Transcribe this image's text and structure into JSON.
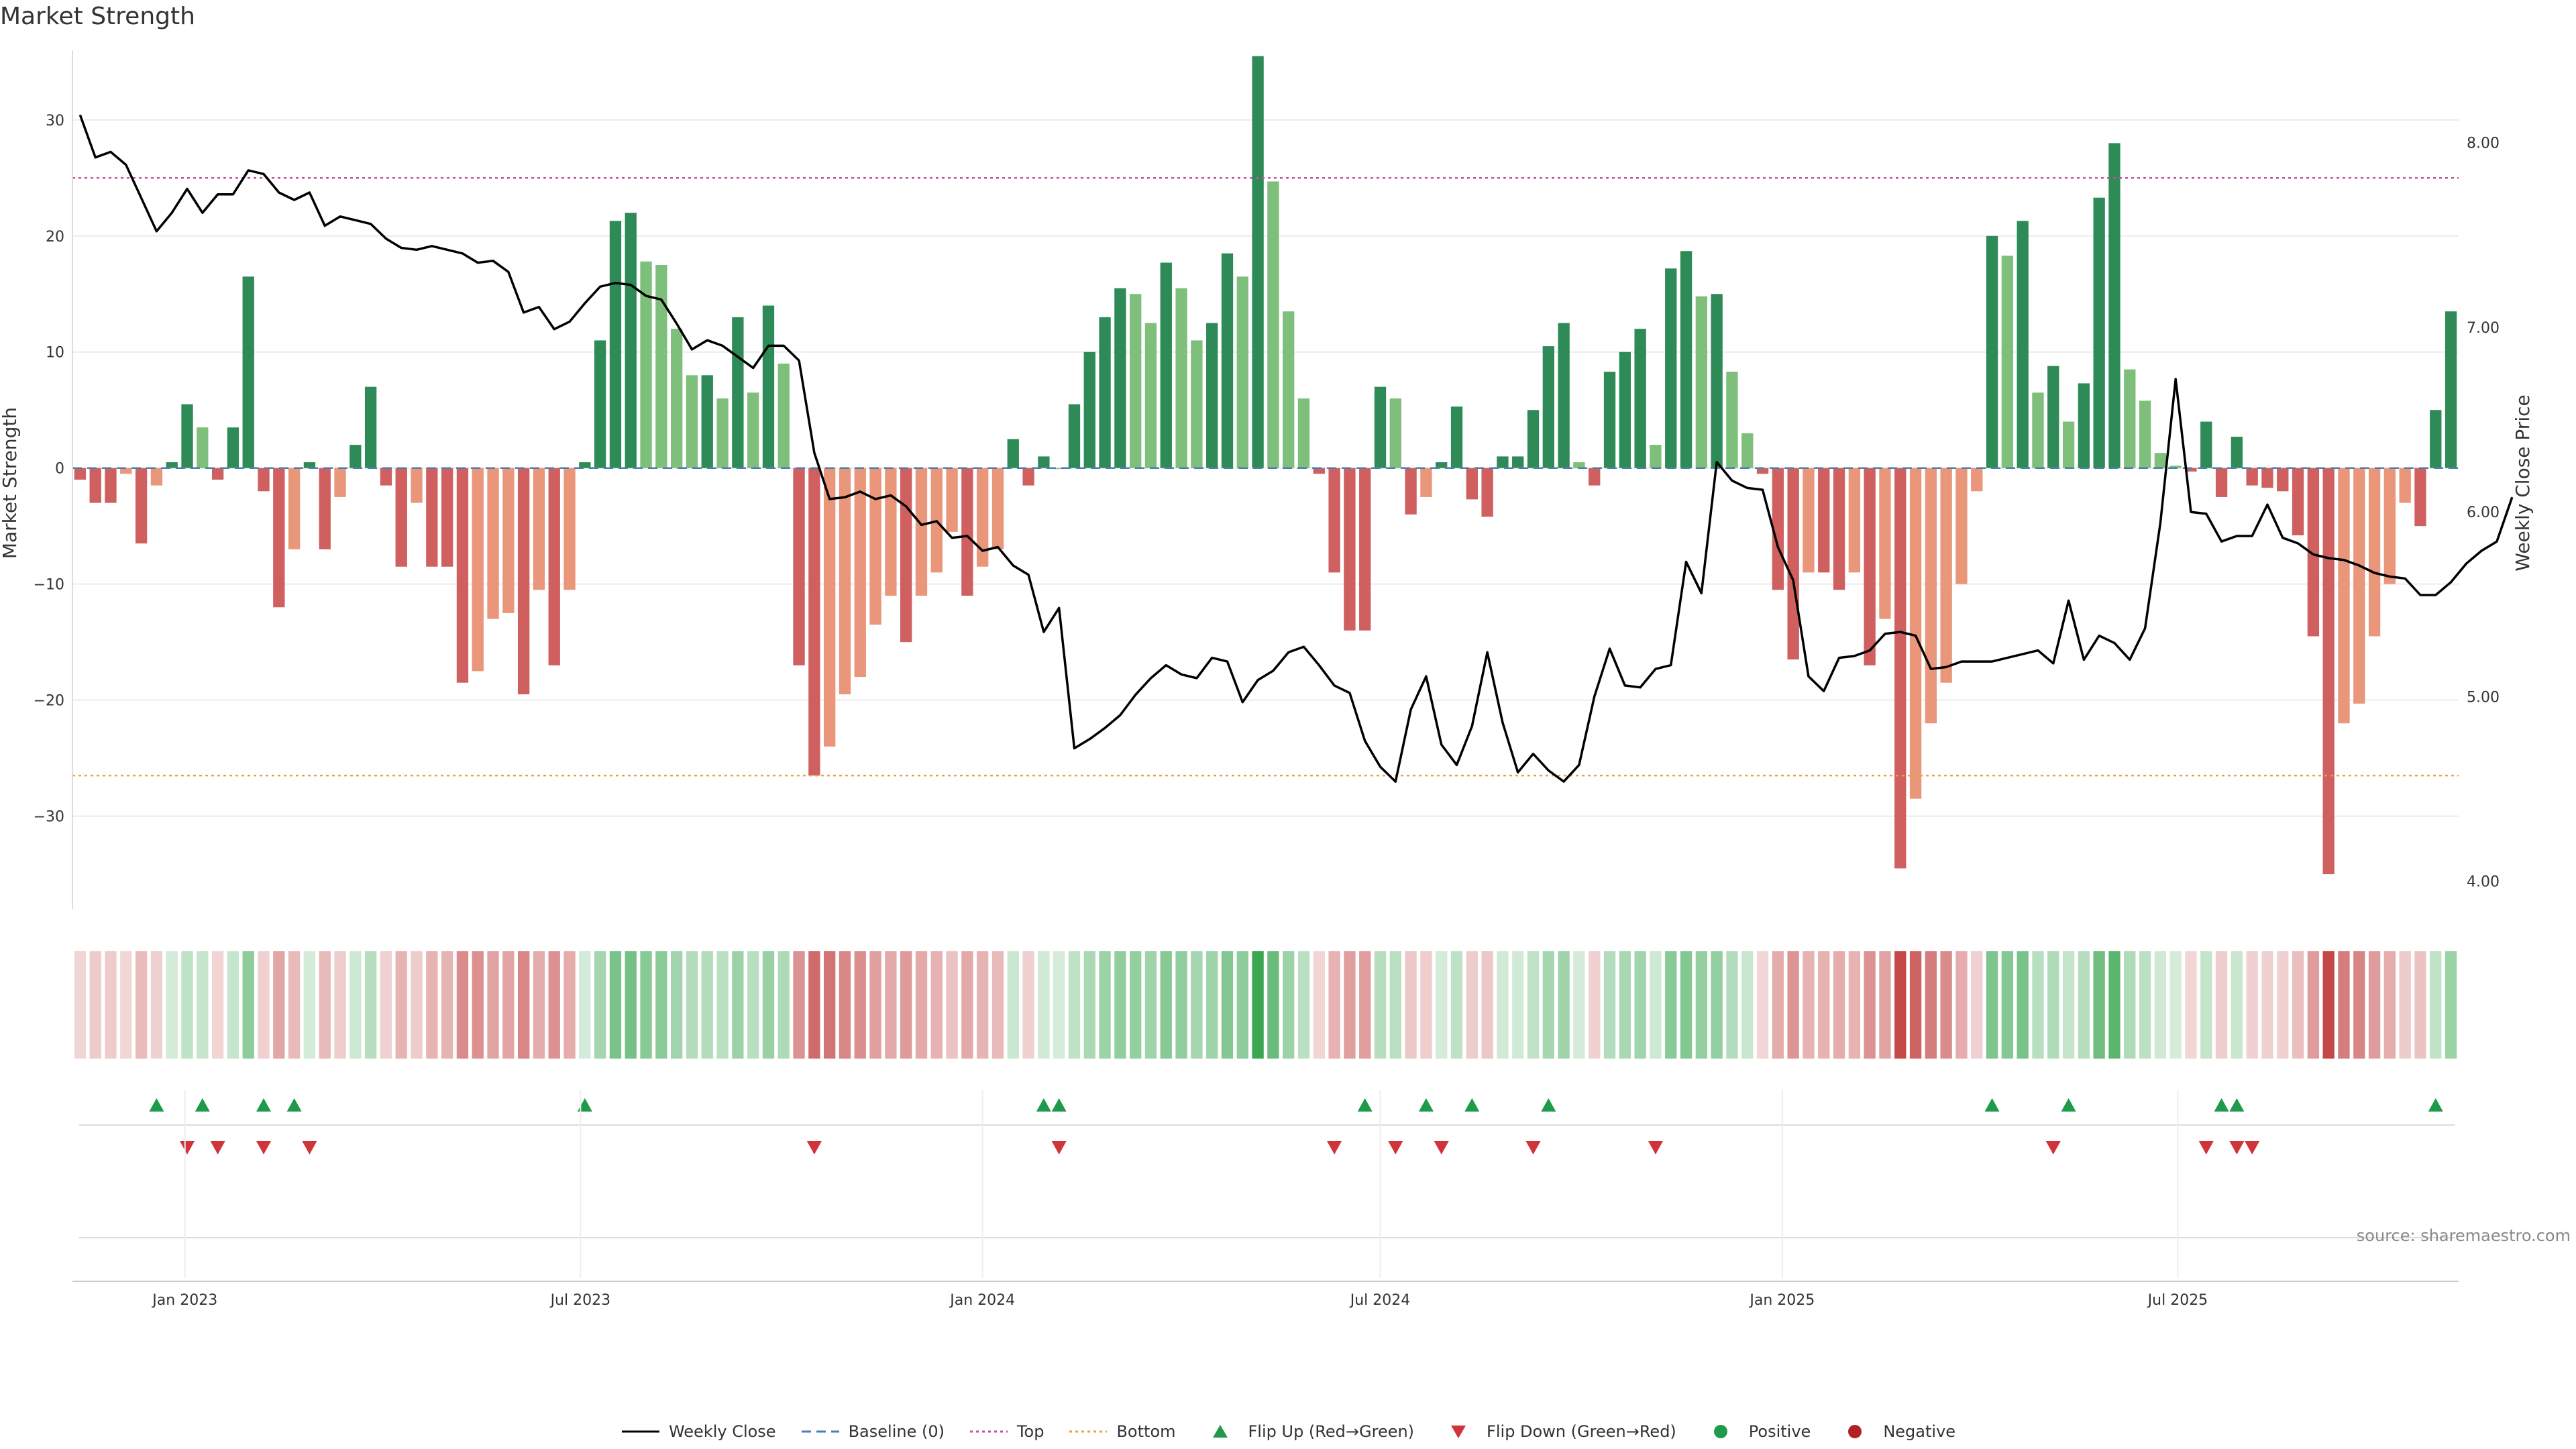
{
  "title": "Market Strength",
  "source_note": "source: sharemaestro.com",
  "colors": {
    "strong_green": "#2e8b57",
    "light_green": "#7dbf7b",
    "strong_red": "#d05f5f",
    "light_red": "#e9967a",
    "top_line": "#c2549d",
    "bottom_line": "#e8a23d",
    "baseline": "#4a7fb0",
    "flip_up": "#1f9a4a",
    "flip_down": "#d0343a",
    "price_line": "#000000"
  },
  "legend": [
    {
      "label": "Weekly Close",
      "icon": "solid-line"
    },
    {
      "label": "Baseline (0)",
      "icon": "dashed-line"
    },
    {
      "label": "Top",
      "icon": "dotted-line"
    },
    {
      "label": "Bottom",
      "icon": "dotted-line"
    },
    {
      "label": "Flip Up (Red→Green)",
      "icon": "triangle-up"
    },
    {
      "label": "Flip Down (Green→Red)",
      "icon": "triangle-down"
    },
    {
      "label": "Positive",
      "icon": "circle"
    },
    {
      "label": "Negative",
      "icon": "circle"
    }
  ],
  "chart_data": {
    "type": "bar",
    "ylabel": "Market Strength",
    "y2label": "Weekly Close Price",
    "ylim": [
      -38,
      36
    ],
    "y2lim": [
      3.85,
      8.5
    ],
    "yticks": [
      30,
      20,
      10,
      0,
      -10,
      -20,
      -30
    ],
    "yticklabels": [
      "30",
      "20",
      "10",
      "0",
      "−10",
      "−20",
      "−30"
    ],
    "y2ticks": [
      8.0,
      7.0,
      6.0,
      5.0,
      4.0
    ],
    "y2ticklabels": [
      "8.00",
      "7.00",
      "6.00",
      "5.00",
      "4.00"
    ],
    "x_start": "2022-11-14",
    "xticklabels": [
      "Jan 2023",
      "Jul 2023",
      "Jan 2024",
      "Jul 2024",
      "Jan 2025",
      "Jul 2025"
    ],
    "xtick_dates": [
      "2023-01-01",
      "2023-07-01",
      "2024-01-01",
      "2024-07-01",
      "2025-01-01",
      "2025-07-01"
    ],
    "top_level": 25,
    "bottom_level": -26.5,
    "grid": true,
    "legend_position": "bottom",
    "strength": [
      -1,
      -3,
      -3,
      -0.5,
      -6.5,
      -1.5,
      0.5,
      5.5,
      3.5,
      -1,
      3.5,
      16.5,
      -2,
      -12,
      -7,
      0.5,
      -7,
      -2.5,
      2,
      7,
      -1.5,
      -8.5,
      -3,
      -8.5,
      -8.5,
      -18.5,
      -17.5,
      -13,
      -12.5,
      -19.5,
      -10.5,
      -17,
      -10.5,
      0.5,
      11,
      21.3,
      22,
      17.8,
      17.5,
      12,
      8,
      8,
      6,
      13,
      6.5,
      14,
      9,
      -17,
      -26.5,
      -24,
      -19.5,
      -18,
      -13.5,
      -11,
      -15,
      -11,
      -9,
      -5.5,
      -11,
      -8.5,
      -7,
      2.5,
      -1.5,
      1,
      0,
      5.5,
      10,
      13,
      15.5,
      15,
      12.5,
      17.7,
      15.5,
      11,
      12.5,
      18.5,
      16.5,
      35.5,
      24.7,
      13.5,
      6,
      -0.5,
      -9,
      -14,
      -14,
      7,
      6,
      -4,
      -2.5,
      0.5,
      5.3,
      -2.7,
      -4.2,
      1,
      1,
      5,
      10.5,
      12.5,
      0.5,
      -1.5,
      8.3,
      10,
      12,
      2,
      17.2,
      18.7,
      14.8,
      15,
      8.3,
      3,
      -0.5,
      -10.5,
      -16.5,
      -9,
      -9,
      -10.5,
      -9,
      -17,
      -13,
      -34.5,
      -28.5,
      -22,
      -18.5,
      -10,
      -2,
      20,
      18.3,
      21.3,
      6.5,
      8.8,
      4,
      7.3,
      23.3,
      28,
      8.5,
      5.8,
      1.3,
      0.2,
      -0.3,
      4,
      -2.5,
      2.7,
      -1.5,
      -1.7,
      -2,
      -5.8,
      -14.5,
      -35,
      -22,
      -20.3,
      -14.5,
      -10,
      -3,
      -5,
      5,
      13.5
    ],
    "weekly_close": [
      8.15,
      7.92,
      7.95,
      7.88,
      7.7,
      7.52,
      7.62,
      7.75,
      7.62,
      7.72,
      7.72,
      7.85,
      7.83,
      7.73,
      7.69,
      7.73,
      7.55,
      7.6,
      7.58,
      7.56,
      7.48,
      7.43,
      7.42,
      7.44,
      7.42,
      7.4,
      7.35,
      7.36,
      7.3,
      7.08,
      7.11,
      6.99,
      7.03,
      7.13,
      7.22,
      7.24,
      7.23,
      7.17,
      7.15,
      7.02,
      6.88,
      6.93,
      6.9,
      6.84,
      6.78,
      6.9,
      6.9,
      6.82,
      6.32,
      6.07,
      6.08,
      6.11,
      6.07,
      6.09,
      6.03,
      5.93,
      5.95,
      5.86,
      5.87,
      5.79,
      5.81,
      5.71,
      5.66,
      5.35,
      5.48,
      4.72,
      4.77,
      4.83,
      4.9,
      5.01,
      5.1,
      5.17,
      5.12,
      5.1,
      5.21,
      5.19,
      4.97,
      5.09,
      5.14,
      5.24,
      5.27,
      5.17,
      5.06,
      5.02,
      4.76,
      4.62,
      4.54,
      4.93,
      5.11,
      4.74,
      4.63,
      4.84,
      5.24,
      4.86,
      4.59,
      4.69,
      4.6,
      4.54,
      4.63,
      5.0,
      5.26,
      5.06,
      5.05,
      5.15,
      5.17,
      5.73,
      5.56,
      6.27,
      6.17,
      6.13,
      6.12,
      5.81,
      5.63,
      5.11,
      5.03,
      5.21,
      5.22,
      5.25,
      5.34,
      5.35,
      5.33,
      5.15,
      5.16,
      5.19,
      5.19,
      5.19,
      5.21,
      5.23,
      5.25,
      5.18,
      5.52,
      5.2,
      5.33,
      5.29,
      5.2,
      5.37,
      5.94,
      6.72,
      6.0,
      5.99,
      5.84,
      5.87,
      5.87,
      6.04,
      5.86,
      5.83,
      5.77,
      5.75,
      5.74,
      5.71,
      5.67,
      5.65,
      5.64,
      5.55,
      5.55,
      5.62,
      5.72,
      5.79,
      5.84,
      6.08
    ],
    "flip_up_dates": [
      "2022-12-19",
      "2023-01-09",
      "2023-02-06",
      "2023-02-20",
      "2023-07-03",
      "2024-01-29",
      "2024-02-05",
      "2024-06-24",
      "2024-07-22",
      "2024-08-12",
      "2024-09-16",
      "2025-04-07",
      "2025-05-12",
      "2025-07-21",
      "2025-07-28",
      "2025-10-27"
    ],
    "flip_down_dates": [
      "2023-01-02",
      "2023-01-16",
      "2023-02-06",
      "2023-02-27",
      "2023-10-16",
      "2024-02-05",
      "2024-06-10",
      "2024-07-08",
      "2024-07-29",
      "2024-09-09",
      "2024-11-04",
      "2025-05-05",
      "2025-07-14",
      "2025-07-28",
      "2025-08-04"
    ]
  }
}
